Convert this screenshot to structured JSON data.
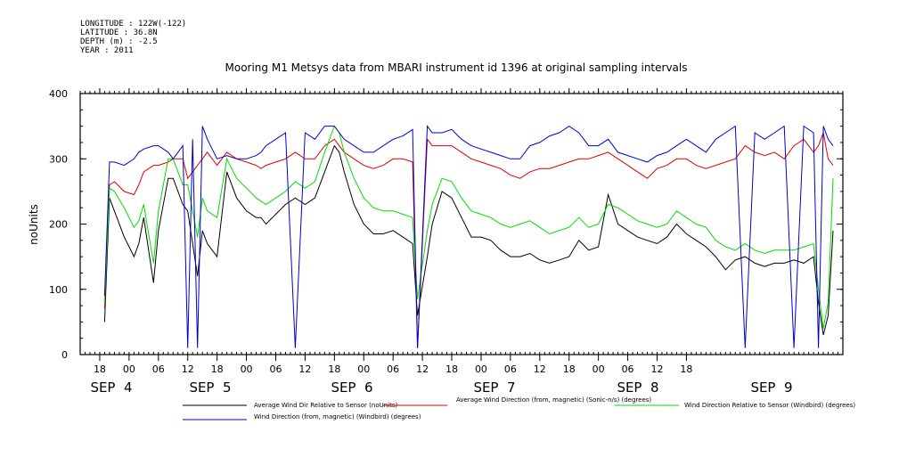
{
  "header": {
    "longitude": "LONGITUDE : 122W(-122)",
    "latitude": "LATITUDE : 36.8N",
    "depth": "DEPTH (m) : -2.5",
    "year": "YEAR : 2011"
  },
  "chart_data": {
    "type": "line",
    "title": "Mooring M1 Metsys data from MBARI instrument id 1396 at original sampling intervals",
    "ylabel": "noUnits",
    "xlabel": "",
    "ylim": [
      0,
      400
    ],
    "yticks": [
      0,
      100,
      200,
      300,
      400
    ],
    "xlim_hours": [
      -10,
      146
    ],
    "x_hour_ticks": [
      "18",
      "00",
      "06",
      "12",
      "18",
      "00",
      "06",
      "12",
      "18",
      "00",
      "06",
      "12",
      "18",
      "00",
      "06",
      "12",
      "18",
      "00",
      "06",
      "12",
      "18"
    ],
    "x_day_labels": [
      "SEP 4",
      "SEP 5",
      "SEP 6",
      "SEP 7",
      "SEP 8",
      "SEP 9"
    ],
    "grid": false,
    "legend_placement": "bottom",
    "series": [
      {
        "name": "Average Wind Dir Relative to Sensor (noUnits)",
        "color": "#000000",
        "x": [
          -5,
          -4,
          -3,
          -1,
          1,
          2,
          3,
          5,
          6,
          8,
          9,
          11,
          12,
          13,
          14,
          15,
          16,
          18,
          20,
          22,
          24,
          26,
          27,
          28,
          30,
          32,
          34,
          36,
          38,
          40,
          42,
          43,
          44,
          46,
          48,
          50,
          52,
          54,
          56,
          58,
          59,
          61,
          62,
          64,
          66,
          68,
          70,
          72,
          74,
          76,
          78,
          80,
          82,
          84,
          86,
          88,
          90,
          92,
          94,
          96,
          98,
          100,
          102,
          104,
          106,
          108,
          110,
          112,
          114,
          116,
          118,
          120,
          122,
          124,
          126,
          128,
          130,
          132,
          134,
          136,
          138,
          140,
          141,
          142,
          143,
          144
        ],
        "y": [
          50,
          240,
          220,
          180,
          150,
          170,
          210,
          110,
          190,
          270,
          270,
          230,
          220,
          170,
          120,
          190,
          170,
          150,
          280,
          240,
          220,
          210,
          210,
          200,
          215,
          230,
          240,
          230,
          240,
          280,
          320,
          310,
          280,
          230,
          200,
          185,
          185,
          190,
          180,
          170,
          60,
          150,
          200,
          250,
          240,
          210,
          180,
          180,
          175,
          160,
          150,
          150,
          155,
          145,
          140,
          145,
          150,
          175,
          160,
          165,
          245,
          200,
          190,
          180,
          175,
          170,
          180,
          200,
          185,
          175,
          165,
          150,
          130,
          145,
          150,
          140,
          135,
          140,
          140,
          145,
          140,
          150,
          80,
          30,
          60,
          190
        ]
      },
      {
        "name": "Average Wind Direction (from, magnetic) (Sonic-n/s) (degrees)",
        "color": "#e00000",
        "x": [
          -5,
          -4,
          -3,
          -1,
          1,
          2,
          3,
          5,
          6,
          8,
          9,
          11,
          12,
          13,
          14,
          15,
          16,
          18,
          20,
          22,
          24,
          26,
          27,
          28,
          30,
          32,
          34,
          36,
          38,
          40,
          42,
          43,
          44,
          46,
          48,
          50,
          52,
          54,
          56,
          58,
          59,
          61,
          62,
          64,
          66,
          68,
          70,
          72,
          74,
          76,
          78,
          80,
          82,
          84,
          86,
          88,
          90,
          92,
          94,
          96,
          98,
          100,
          102,
          104,
          106,
          108,
          110,
          112,
          114,
          116,
          118,
          120,
          122,
          124,
          126,
          128,
          130,
          132,
          134,
          136,
          138,
          140,
          141,
          142,
          143,
          144
        ],
        "y": [
          70,
          260,
          265,
          250,
          245,
          260,
          280,
          290,
          290,
          295,
          300,
          300,
          270,
          280,
          290,
          300,
          310,
          290,
          310,
          300,
          295,
          290,
          285,
          290,
          295,
          300,
          310,
          300,
          300,
          320,
          330,
          320,
          310,
          300,
          290,
          285,
          290,
          300,
          300,
          295,
          10,
          330,
          320,
          320,
          320,
          310,
          300,
          295,
          290,
          285,
          275,
          270,
          280,
          285,
          285,
          290,
          295,
          300,
          300,
          305,
          310,
          300,
          290,
          280,
          270,
          285,
          290,
          300,
          300,
          290,
          285,
          290,
          295,
          300,
          320,
          310,
          305,
          310,
          300,
          320,
          330,
          310,
          320,
          340,
          300,
          290
        ]
      },
      {
        "name": "Wind Direction Relative to Sensor (Windbird) (degrees)",
        "color": "#00dd00",
        "x": [
          -5,
          -4,
          -3,
          -1,
          1,
          2,
          3,
          5,
          6,
          8,
          9,
          11,
          12,
          13,
          14,
          15,
          16,
          18,
          20,
          22,
          24,
          26,
          27,
          28,
          30,
          32,
          34,
          36,
          38,
          40,
          42,
          43,
          44,
          46,
          48,
          50,
          52,
          54,
          56,
          58,
          59,
          61,
          62,
          64,
          66,
          68,
          70,
          72,
          74,
          76,
          78,
          80,
          82,
          84,
          86,
          88,
          90,
          92,
          94,
          96,
          98,
          100,
          102,
          104,
          106,
          108,
          110,
          112,
          114,
          116,
          118,
          120,
          122,
          124,
          126,
          128,
          130,
          132,
          134,
          136,
          138,
          140,
          141,
          142,
          143,
          144
        ],
        "y": [
          80,
          255,
          250,
          225,
          195,
          205,
          230,
          140,
          220,
          300,
          300,
          260,
          260,
          220,
          180,
          240,
          220,
          210,
          300,
          270,
          255,
          240,
          235,
          230,
          240,
          250,
          265,
          255,
          265,
          310,
          350,
          340,
          310,
          270,
          240,
          225,
          220,
          220,
          215,
          210,
          85,
          190,
          230,
          270,
          265,
          240,
          220,
          215,
          210,
          200,
          195,
          200,
          205,
          195,
          185,
          190,
          195,
          210,
          195,
          200,
          230,
          225,
          215,
          205,
          200,
          195,
          200,
          220,
          210,
          200,
          195,
          175,
          165,
          160,
          170,
          160,
          155,
          160,
          160,
          160,
          165,
          170,
          100,
          40,
          80,
          270
        ]
      },
      {
        "name": "Wind Direction (from, magnetic) (Windbird) (degrees)",
        "color": "#0000cc",
        "x": [
          -5,
          -4,
          -3,
          -1,
          1,
          2,
          3,
          5,
          6,
          8,
          9,
          11,
          12,
          13,
          14,
          15,
          16,
          18,
          20,
          22,
          24,
          26,
          27,
          28,
          30,
          32,
          34,
          36,
          38,
          40,
          42,
          43,
          44,
          46,
          48,
          50,
          52,
          54,
          56,
          58,
          59,
          61,
          62,
          64,
          66,
          68,
          70,
          72,
          74,
          76,
          78,
          80,
          82,
          84,
          86,
          88,
          90,
          92,
          94,
          96,
          98,
          100,
          102,
          104,
          106,
          108,
          110,
          112,
          114,
          116,
          118,
          120,
          122,
          124,
          126,
          128,
          130,
          132,
          134,
          136,
          138,
          140,
          141,
          142,
          143,
          144
        ],
        "y": [
          90,
          295,
          295,
          290,
          300,
          310,
          315,
          320,
          320,
          310,
          300,
          320,
          10,
          330,
          10,
          350,
          330,
          300,
          305,
          300,
          300,
          305,
          310,
          320,
          330,
          340,
          10,
          340,
          330,
          350,
          350,
          340,
          330,
          320,
          310,
          310,
          320,
          330,
          335,
          345,
          10,
          350,
          340,
          340,
          345,
          330,
          320,
          315,
          310,
          305,
          300,
          300,
          320,
          325,
          335,
          340,
          350,
          340,
          320,
          320,
          330,
          310,
          305,
          300,
          295,
          305,
          310,
          320,
          330,
          320,
          310,
          330,
          340,
          350,
          10,
          340,
          330,
          340,
          350,
          10,
          350,
          340,
          10,
          350,
          330,
          320
        ]
      }
    ]
  }
}
